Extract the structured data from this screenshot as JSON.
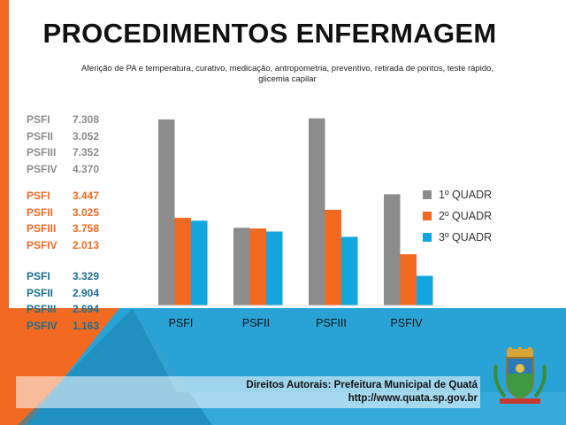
{
  "title": "PROCEDIMENTOS ENFERMAGEM",
  "subtitle": "Aferição de PA e temperatura, curativo, medicação, antropometria, preventivo, retirada de pontos, teste rápido, glicemia capilar",
  "stats_groups": [
    {
      "color": "#8c8c8c",
      "rows": [
        {
          "name": "PSFI",
          "value": "7.308"
        },
        {
          "name": "PSFII",
          "value": "3.052"
        },
        {
          "name": "PSFIII",
          "value": "7.352"
        },
        {
          "name": "PSFIV",
          "value": "4.370"
        }
      ]
    },
    {
      "color": "#f26a21",
      "rows": [
        {
          "name": "PSFI",
          "value": "3.447"
        },
        {
          "name": "PSFII",
          "value": "3.025"
        },
        {
          "name": "PSFIII",
          "value": "3.758"
        },
        {
          "name": "PSFIV",
          "value": "2.013"
        }
      ]
    },
    {
      "color": "#1a6f8f",
      "rows": [
        {
          "name": "PSFI",
          "value": "3.329"
        },
        {
          "name": "PSFII",
          "value": "2.904"
        },
        {
          "name": "PSFIII",
          "value": "2.694"
        },
        {
          "name": "PSFIV",
          "value": "1.163"
        }
      ]
    }
  ],
  "chart_data": {
    "type": "bar",
    "categories": [
      "PSFI",
      "PSFII",
      "PSFIII",
      "PSFIV"
    ],
    "series": [
      {
        "name": "1º QUADR",
        "color": "#8c8c8c",
        "values": [
          7308,
          3052,
          7352,
          4370
        ]
      },
      {
        "name": "2º QUADR",
        "color": "#f26a21",
        "values": [
          3447,
          3025,
          3758,
          2013
        ]
      },
      {
        "name": "3º QUADR",
        "color": "#12a5de",
        "values": [
          3329,
          2904,
          2694,
          1163
        ]
      }
    ],
    "ylim": [
      0,
      8000
    ],
    "legend": "right",
    "grid": false
  },
  "footer": {
    "line1": "Direitos Autorais: Prefeitura Municipal de Quatá",
    "line2": "http://www.quata.sp.gov.br"
  },
  "colors": {
    "orange": "#f26a21",
    "blue_band": "#29a3d6",
    "accent_blue": "#12a5de"
  }
}
